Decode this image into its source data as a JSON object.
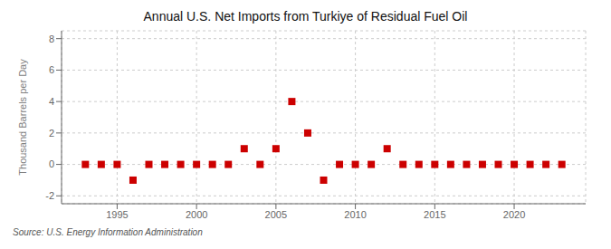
{
  "chart_data": {
    "type": "scatter",
    "title": "Annual U.S. Net Imports from Turkiye of Residual Fuel Oil",
    "ylabel": "Thousand Barrels per Day",
    "source": "Source: U.S. Energy Information Administration",
    "x": [
      1993,
      1994,
      1995,
      1996,
      1997,
      1998,
      1999,
      2000,
      2001,
      2002,
      2003,
      2004,
      2005,
      2006,
      2007,
      2008,
      2009,
      2010,
      2011,
      2012,
      2013,
      2014,
      2015,
      2016,
      2017,
      2018,
      2019,
      2020,
      2021,
      2022,
      2023
    ],
    "values": [
      0,
      0,
      0,
      -1,
      0,
      0,
      0,
      0,
      0,
      0,
      1,
      0,
      1,
      4,
      2,
      -1,
      0,
      0,
      0,
      1,
      0,
      0,
      0,
      0,
      0,
      0,
      0,
      0,
      0,
      0,
      0
    ],
    "xlim": [
      1991.5,
      2024.5
    ],
    "xticks": [
      1995,
      2000,
      2005,
      2010,
      2015,
      2020
    ],
    "ylim": [
      -2.5,
      8.5
    ],
    "yticks": [
      -2,
      0,
      2,
      4,
      6,
      8
    ],
    "grid": true,
    "color": "#cc0000",
    "marker": "square"
  }
}
